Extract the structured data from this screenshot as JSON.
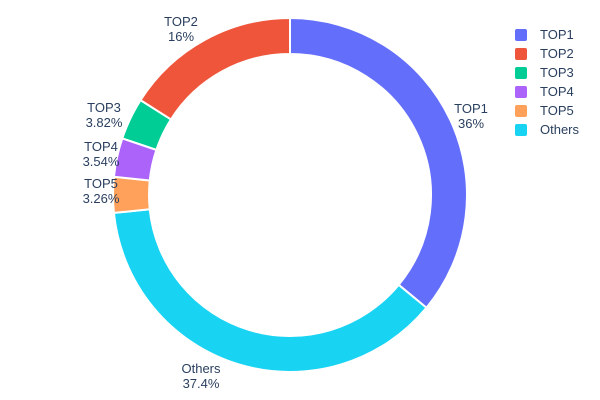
{
  "chart_data": {
    "type": "pie",
    "subtype": "donut",
    "hole": 0.8,
    "title": "",
    "labels": [
      "TOP1",
      "TOP2",
      "TOP3",
      "TOP4",
      "TOP5",
      "Others"
    ],
    "values": [
      36,
      16,
      3.82,
      3.54,
      3.26,
      37.4
    ],
    "percent_labels": [
      "36%",
      "16%",
      "3.82%",
      "3.54%",
      "3.26%",
      "37.4%"
    ],
    "colors": [
      "#636EFA",
      "#EF553B",
      "#00CC96",
      "#AB63FA",
      "#FFA15A",
      "#19D3F3"
    ],
    "clockwise_order": [
      "TOP1",
      "Others",
      "TOP5",
      "TOP4",
      "TOP3",
      "TOP2"
    ],
    "slice_border_color": "#ffffff",
    "text_color": "#2a3f5f",
    "background": "#ffffff",
    "legend": {
      "position": "top-right",
      "entries": [
        "TOP1",
        "TOP2",
        "TOP3",
        "TOP4",
        "TOP5",
        "Others"
      ]
    }
  }
}
